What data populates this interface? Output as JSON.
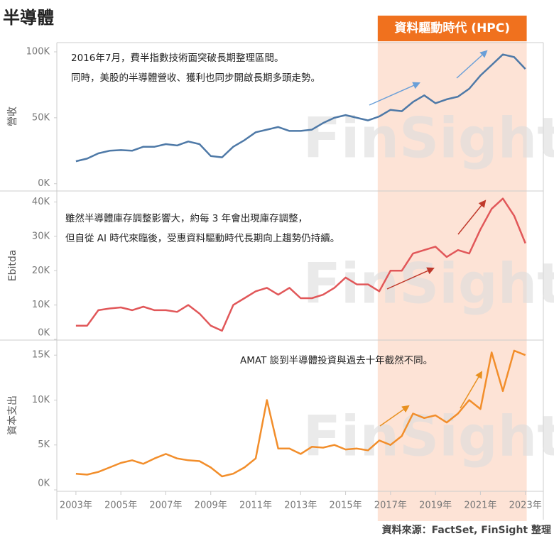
{
  "title": "半導體",
  "source": "資料來源：FactSet, FinSight 整理",
  "watermark": "FinSight",
  "highlight": {
    "label": "資料驅動時代 (HPC)",
    "start": 2016.43,
    "end": 2023.06
  },
  "chart_data": [
    {
      "type": "line",
      "y_label": "營收",
      "annotation": [
        "2016年7月，費半指數技術面突破長期整理區間。",
        "同時，美股的半導體營收、獲利也同步開啟長期多頭走勢。"
      ],
      "x": [
        2003,
        2003.5,
        2004,
        2004.5,
        2005,
        2005.5,
        2006,
        2006.5,
        2007,
        2007.5,
        2008,
        2008.5,
        2009,
        2009.5,
        2010,
        2010.5,
        2011,
        2011.5,
        2012,
        2012.5,
        2013,
        2013.5,
        2014,
        2014.5,
        2015,
        2015.5,
        2016,
        2016.5,
        2017,
        2017.5,
        2018,
        2018.5,
        2019,
        2019.5,
        2020,
        2020.5,
        2021,
        2021.5,
        2022,
        2022.5,
        2023
      ],
      "xlim": [
        2002.15,
        2023.8
      ],
      "ylim": [
        -5,
        107
      ],
      "yticks": [
        {
          "value": 0,
          "label": "0K"
        },
        {
          "value": 50,
          "label": "50K"
        },
        {
          "value": 100,
          "label": "100K"
        }
      ],
      "series": [
        {
          "color": "#4e79a7",
          "values": [
            17,
            19,
            23,
            25,
            25.5,
            25,
            28,
            28,
            30,
            29,
            32,
            30,
            21,
            20,
            28,
            33,
            39,
            41,
            43,
            40,
            40,
            41,
            46,
            50,
            52,
            50,
            48,
            51,
            56,
            55,
            62,
            67,
            61,
            64,
            66,
            72,
            82,
            90,
            98,
            96,
            87
          ]
        }
      ]
    },
    {
      "type": "line",
      "y_label": "Ebitda",
      "annotation": [
        "雖然半導體庫存調整影響大，約每 3 年會出現庫存調整，",
        "但自從 AI 時代來臨後，受惠資料驅動時代長期向上趨勢仍持續。"
      ],
      "x": [
        2003,
        2003.5,
        2004,
        2004.5,
        2005,
        2005.5,
        2006,
        2006.5,
        2007,
        2007.5,
        2008,
        2008.5,
        2009,
        2009.5,
        2010,
        2010.5,
        2011,
        2011.5,
        2012,
        2012.5,
        2013,
        2013.5,
        2014,
        2014.5,
        2015,
        2015.5,
        2016,
        2016.5,
        2017,
        2017.5,
        2018,
        2018.5,
        2019,
        2019.5,
        2020,
        2020.5,
        2021,
        2021.5,
        2022,
        2022.5,
        2023
      ],
      "xlim": [
        2002.15,
        2023.8
      ],
      "ylim": [
        0,
        43
      ],
      "yticks": [
        {
          "value": 0,
          "label": "0K"
        },
        {
          "value": 10,
          "label": "10K"
        },
        {
          "value": 20,
          "label": "20K"
        },
        {
          "value": 30,
          "label": "30K"
        },
        {
          "value": 40,
          "label": "40K"
        }
      ],
      "series": [
        {
          "color": "#e15759",
          "values": [
            4,
            4,
            8.5,
            9,
            9.3,
            8.5,
            9.5,
            8.5,
            8.5,
            8,
            10,
            7.5,
            4,
            2.5,
            10,
            12,
            14,
            15,
            13,
            15,
            12,
            12,
            13,
            15,
            18,
            16,
            16,
            14,
            20,
            20,
            25,
            26,
            27,
            24,
            26,
            25,
            32,
            38,
            41,
            36,
            28
          ]
        }
      ]
    },
    {
      "type": "line",
      "y_label": "資本支出",
      "annotation": [
        "AMAT 談到半導體投資與過去十年截然不同。"
      ],
      "x": [
        2003,
        2003.5,
        2004,
        2004.5,
        2005,
        2005.5,
        2006,
        2006.5,
        2007,
        2007.5,
        2008,
        2008.5,
        2009,
        2009.5,
        2010,
        2010.5,
        2011,
        2011.5,
        2012,
        2012.5,
        2013,
        2013.5,
        2014,
        2014.5,
        2015,
        2015.5,
        2016,
        2016.5,
        2017,
        2017.5,
        2018,
        2018.5,
        2019,
        2019.5,
        2020,
        2020.5,
        2021,
        2021.5,
        2022,
        2022.5,
        2023
      ],
      "xlim": [
        2002.15,
        2023.8
      ],
      "ylim": [
        0,
        16.6
      ],
      "yticks": [
        {
          "value": 0,
          "label": "0K"
        },
        {
          "value": 5,
          "label": "5K"
        },
        {
          "value": 10,
          "label": "10K"
        },
        {
          "value": 15,
          "label": "15K"
        }
      ],
      "xticks": [
        {
          "value": 2003,
          "label": "2003年"
        },
        {
          "value": 2005,
          "label": "2005年"
        },
        {
          "value": 2007,
          "label": "2007年"
        },
        {
          "value": 2009,
          "label": "2009年"
        },
        {
          "value": 2011,
          "label": "2011年"
        },
        {
          "value": 2013,
          "label": "2013年"
        },
        {
          "value": 2015,
          "label": "2015年"
        },
        {
          "value": 2017,
          "label": "2017年"
        },
        {
          "value": 2019,
          "label": "2019年"
        },
        {
          "value": 2021,
          "label": "2021年"
        },
        {
          "value": 2023,
          "label": "2023年"
        }
      ],
      "series": [
        {
          "color": "#f28e2b",
          "values": [
            1.8,
            1.7,
            2.0,
            2.5,
            3.0,
            3.3,
            2.9,
            3.5,
            4.0,
            3.5,
            3.3,
            3.2,
            2.5,
            1.5,
            1.8,
            2.5,
            3.5,
            10,
            4.6,
            4.6,
            4.0,
            4.8,
            4.7,
            5.0,
            4.5,
            4.6,
            4.4,
            5.5,
            5.0,
            6.0,
            8.5,
            8.0,
            8.3,
            7.5,
            8.5,
            10,
            9,
            15.3,
            11,
            15.5,
            15
          ]
        }
      ]
    }
  ]
}
